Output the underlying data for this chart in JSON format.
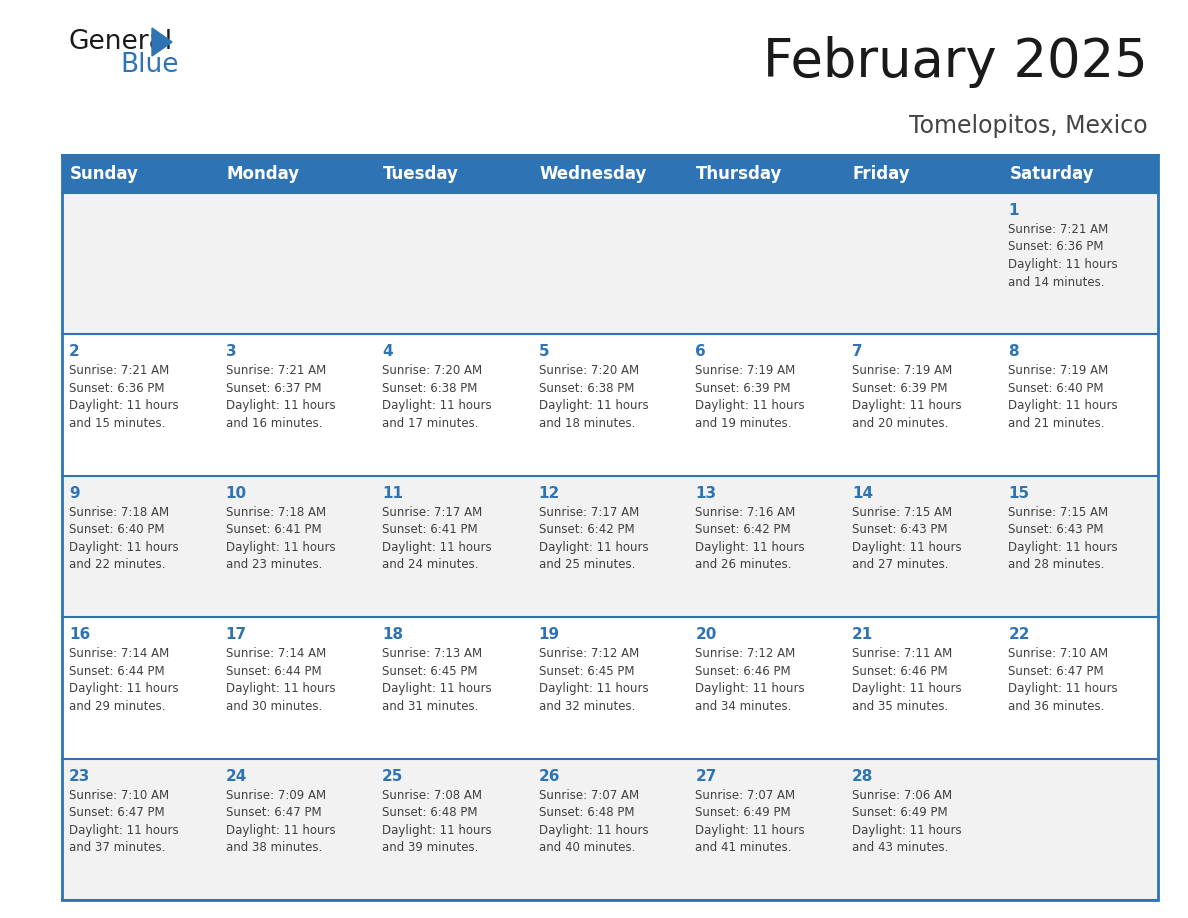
{
  "title": "February 2025",
  "subtitle": "Tomelopitos, Mexico",
  "header_bg_color": "#2E74B5",
  "header_text_color": "#FFFFFF",
  "day_names": [
    "Sunday",
    "Monday",
    "Tuesday",
    "Wednesday",
    "Thursday",
    "Friday",
    "Saturday"
  ],
  "cell_bg_light": "#F2F2F2",
  "cell_bg_white": "#FFFFFF",
  "cell_border_color": "#2E74B5",
  "day_number_color": "#2E74B5",
  "info_text_color": "#404040",
  "calendar": [
    [
      {
        "day": null,
        "info": null
      },
      {
        "day": null,
        "info": null
      },
      {
        "day": null,
        "info": null
      },
      {
        "day": null,
        "info": null
      },
      {
        "day": null,
        "info": null
      },
      {
        "day": null,
        "info": null
      },
      {
        "day": 1,
        "info": "Sunrise: 7:21 AM\nSunset: 6:36 PM\nDaylight: 11 hours\nand 14 minutes."
      }
    ],
    [
      {
        "day": 2,
        "info": "Sunrise: 7:21 AM\nSunset: 6:36 PM\nDaylight: 11 hours\nand 15 minutes."
      },
      {
        "day": 3,
        "info": "Sunrise: 7:21 AM\nSunset: 6:37 PM\nDaylight: 11 hours\nand 16 minutes."
      },
      {
        "day": 4,
        "info": "Sunrise: 7:20 AM\nSunset: 6:38 PM\nDaylight: 11 hours\nand 17 minutes."
      },
      {
        "day": 5,
        "info": "Sunrise: 7:20 AM\nSunset: 6:38 PM\nDaylight: 11 hours\nand 18 minutes."
      },
      {
        "day": 6,
        "info": "Sunrise: 7:19 AM\nSunset: 6:39 PM\nDaylight: 11 hours\nand 19 minutes."
      },
      {
        "day": 7,
        "info": "Sunrise: 7:19 AM\nSunset: 6:39 PM\nDaylight: 11 hours\nand 20 minutes."
      },
      {
        "day": 8,
        "info": "Sunrise: 7:19 AM\nSunset: 6:40 PM\nDaylight: 11 hours\nand 21 minutes."
      }
    ],
    [
      {
        "day": 9,
        "info": "Sunrise: 7:18 AM\nSunset: 6:40 PM\nDaylight: 11 hours\nand 22 minutes."
      },
      {
        "day": 10,
        "info": "Sunrise: 7:18 AM\nSunset: 6:41 PM\nDaylight: 11 hours\nand 23 minutes."
      },
      {
        "day": 11,
        "info": "Sunrise: 7:17 AM\nSunset: 6:41 PM\nDaylight: 11 hours\nand 24 minutes."
      },
      {
        "day": 12,
        "info": "Sunrise: 7:17 AM\nSunset: 6:42 PM\nDaylight: 11 hours\nand 25 minutes."
      },
      {
        "day": 13,
        "info": "Sunrise: 7:16 AM\nSunset: 6:42 PM\nDaylight: 11 hours\nand 26 minutes."
      },
      {
        "day": 14,
        "info": "Sunrise: 7:15 AM\nSunset: 6:43 PM\nDaylight: 11 hours\nand 27 minutes."
      },
      {
        "day": 15,
        "info": "Sunrise: 7:15 AM\nSunset: 6:43 PM\nDaylight: 11 hours\nand 28 minutes."
      }
    ],
    [
      {
        "day": 16,
        "info": "Sunrise: 7:14 AM\nSunset: 6:44 PM\nDaylight: 11 hours\nand 29 minutes."
      },
      {
        "day": 17,
        "info": "Sunrise: 7:14 AM\nSunset: 6:44 PM\nDaylight: 11 hours\nand 30 minutes."
      },
      {
        "day": 18,
        "info": "Sunrise: 7:13 AM\nSunset: 6:45 PM\nDaylight: 11 hours\nand 31 minutes."
      },
      {
        "day": 19,
        "info": "Sunrise: 7:12 AM\nSunset: 6:45 PM\nDaylight: 11 hours\nand 32 minutes."
      },
      {
        "day": 20,
        "info": "Sunrise: 7:12 AM\nSunset: 6:46 PM\nDaylight: 11 hours\nand 34 minutes."
      },
      {
        "day": 21,
        "info": "Sunrise: 7:11 AM\nSunset: 6:46 PM\nDaylight: 11 hours\nand 35 minutes."
      },
      {
        "day": 22,
        "info": "Sunrise: 7:10 AM\nSunset: 6:47 PM\nDaylight: 11 hours\nand 36 minutes."
      }
    ],
    [
      {
        "day": 23,
        "info": "Sunrise: 7:10 AM\nSunset: 6:47 PM\nDaylight: 11 hours\nand 37 minutes."
      },
      {
        "day": 24,
        "info": "Sunrise: 7:09 AM\nSunset: 6:47 PM\nDaylight: 11 hours\nand 38 minutes."
      },
      {
        "day": 25,
        "info": "Sunrise: 7:08 AM\nSunset: 6:48 PM\nDaylight: 11 hours\nand 39 minutes."
      },
      {
        "day": 26,
        "info": "Sunrise: 7:07 AM\nSunset: 6:48 PM\nDaylight: 11 hours\nand 40 minutes."
      },
      {
        "day": 27,
        "info": "Sunrise: 7:07 AM\nSunset: 6:49 PM\nDaylight: 11 hours\nand 41 minutes."
      },
      {
        "day": 28,
        "info": "Sunrise: 7:06 AM\nSunset: 6:49 PM\nDaylight: 11 hours\nand 43 minutes."
      },
      {
        "day": null,
        "info": null
      }
    ]
  ],
  "title_fontsize": 38,
  "subtitle_fontsize": 17,
  "header_fontsize": 12,
  "day_number_fontsize": 11,
  "info_fontsize": 8.5
}
